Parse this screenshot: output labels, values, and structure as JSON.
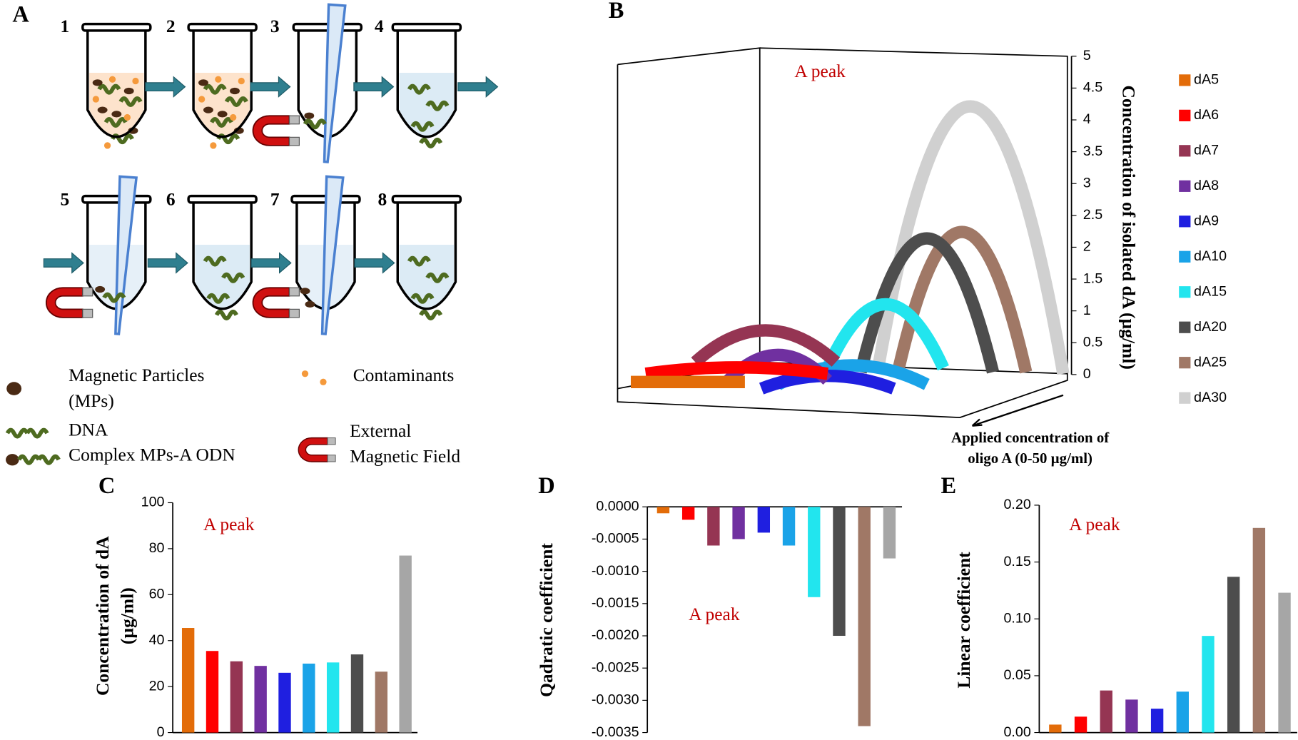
{
  "diagram": {
    "panel": "A",
    "steps": [
      "1",
      "2",
      "3",
      "4",
      "5",
      "6",
      "7",
      "8"
    ],
    "legend": {
      "magnetic_particles": [
        "Magnetic Particles",
        "(MPs)"
      ],
      "contaminants": "Contaminants",
      "dna": "DNA",
      "complex": "Complex MPs-A ODN",
      "magnetic_field": [
        "External",
        "Magnetic Field"
      ]
    }
  },
  "chart_data": [
    {
      "type": "ribbon3d",
      "panel": "B",
      "annotation": "A peak",
      "ylabel": "Concentration of isolated dA (µg/ml)",
      "xlabel": [
        "Applied concentration of",
        "oligo A (0-50 µg/ml)"
      ],
      "ylim": [
        0,
        5
      ],
      "yticks": [
        0,
        0.5,
        1,
        1.5,
        2,
        2.5,
        3,
        3.5,
        4,
        4.5,
        5
      ],
      "series": [
        {
          "name": "dA5",
          "color": "#e36c09",
          "values": [
            0
          ]
        },
        {
          "name": "dA6",
          "color": "#ff0000",
          "values": [
            0.1
          ]
        },
        {
          "name": "dA7",
          "color": "#953553",
          "values": [
            0.5
          ]
        },
        {
          "name": "dA8",
          "color": "#7030a0",
          "values": [
            0.4
          ]
        },
        {
          "name": "dA9",
          "color": "#1f1fe0",
          "values": [
            0.2
          ]
        },
        {
          "name": "dA10",
          "color": "#1aa3e8",
          "values": [
            0.3
          ]
        },
        {
          "name": "dA15",
          "color": "#22e5ee",
          "values": [
            1.0
          ]
        },
        {
          "name": "dA20",
          "color": "#4d4d4d",
          "values": [
            2.1
          ]
        },
        {
          "name": "dA25",
          "color": "#a07866",
          "values": [
            2.2
          ]
        },
        {
          "name": "dA30",
          "color": "#d0d0d0",
          "values": [
            4.2
          ]
        }
      ]
    },
    {
      "type": "bar",
      "panel": "C",
      "annotation": "A peak",
      "ylabel": [
        "Concentration of  dA",
        "(µg/ml)"
      ],
      "values": [
        45.5,
        35.5,
        31,
        29,
        26,
        30,
        30.5,
        34,
        26.5,
        77
      ],
      "colors": [
        "#e36c09",
        "#ff0000",
        "#953553",
        "#7030a0",
        "#1f1fe0",
        "#1aa3e8",
        "#22e5ee",
        "#4d4d4d",
        "#a07866",
        "#a6a6a6"
      ],
      "ylim": [
        0,
        100
      ],
      "yticks": [
        0,
        20,
        40,
        60,
        80,
        100
      ]
    },
    {
      "type": "bar",
      "panel": "D",
      "annotation": "A peak",
      "ylabel": [
        "Qadratic coefficient"
      ],
      "values": [
        -0.0001,
        -0.0002,
        -0.0006,
        -0.0005,
        -0.0004,
        -0.0006,
        -0.0014,
        -0.002,
        -0.0034,
        -0.0008
      ],
      "colors": [
        "#e36c09",
        "#ff0000",
        "#953553",
        "#7030a0",
        "#1f1fe0",
        "#1aa3e8",
        "#22e5ee",
        "#4d4d4d",
        "#a07866",
        "#a6a6a6"
      ],
      "ylim": [
        -0.0035,
        0
      ],
      "yticks": [
        {
          "value": 0,
          "label": "0.0000"
        },
        -0.0005,
        {
          "value": -0.001,
          "label": "-0.0010"
        },
        -0.0015,
        {
          "value": -0.002,
          "label": "-0.0020"
        },
        -0.0025,
        {
          "value": -0.003,
          "label": "-0.0030"
        },
        -0.0035
      ]
    },
    {
      "type": "bar",
      "panel": "E",
      "annotation": "A peak",
      "ylabel": [
        "Linear coefficient"
      ],
      "values": [
        0.007,
        0.014,
        0.037,
        0.029,
        0.021,
        0.036,
        0.085,
        0.137,
        0.18,
        0.123
      ],
      "colors": [
        "#e36c09",
        "#ff0000",
        "#953553",
        "#7030a0",
        "#1f1fe0",
        "#1aa3e8",
        "#22e5ee",
        "#4d4d4d",
        "#a07866",
        "#a6a6a6"
      ],
      "ylim": [
        0,
        0.2
      ],
      "yticks": [
        {
          "value": 0,
          "label": "0.00"
        },
        {
          "value": 0.05,
          "label": "0.05"
        },
        {
          "value": 0.1,
          "label": "0.10"
        },
        {
          "value": 0.15,
          "label": "0.15"
        },
        {
          "value": 0.2,
          "label": "0.20"
        }
      ]
    }
  ]
}
